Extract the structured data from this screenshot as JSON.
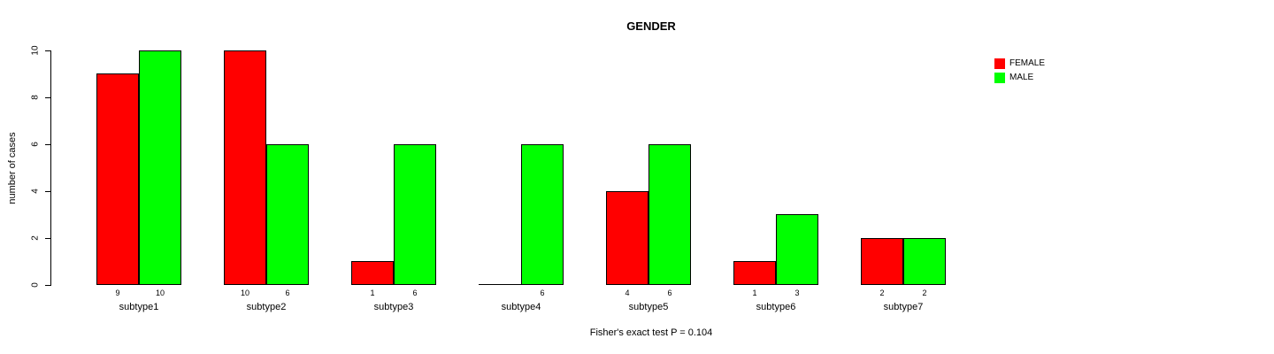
{
  "chart": {
    "title": "GENDER",
    "ylabel": "number of cases",
    "caption": "Fisher's exact test P = 0.104"
  },
  "chart_data": {
    "type": "bar",
    "title": "GENDER",
    "xlabel": "",
    "ylabel": "number of cases",
    "categories": [
      "subtype1",
      "subtype2",
      "subtype3",
      "subtype4",
      "subtype5",
      "subtype6",
      "subtype7"
    ],
    "series": [
      {
        "name": "FEMALE",
        "color": "#ff0000",
        "values": [
          9,
          10,
          1,
          0,
          4,
          1,
          2
        ],
        "bar_labels": [
          "9",
          "10",
          "1",
          "",
          "4",
          "1",
          "2"
        ]
      },
      {
        "name": "MALE",
        "color": "#00ff00",
        "values": [
          10,
          6,
          6,
          6,
          6,
          3,
          2
        ],
        "bar_labels": [
          "10",
          "6",
          "6",
          "6",
          "6",
          "3",
          "2"
        ]
      }
    ],
    "ylim": [
      0,
      10
    ],
    "yticks": [
      0,
      2,
      4,
      6,
      8,
      10
    ],
    "grid": false,
    "legend_position": "top-right",
    "legend": [
      {
        "label": "FEMALE",
        "color": "#ff0000"
      },
      {
        "label": "MALE",
        "color": "#00ff00"
      }
    ],
    "annotation": "Fisher's exact test P = 0.104"
  }
}
